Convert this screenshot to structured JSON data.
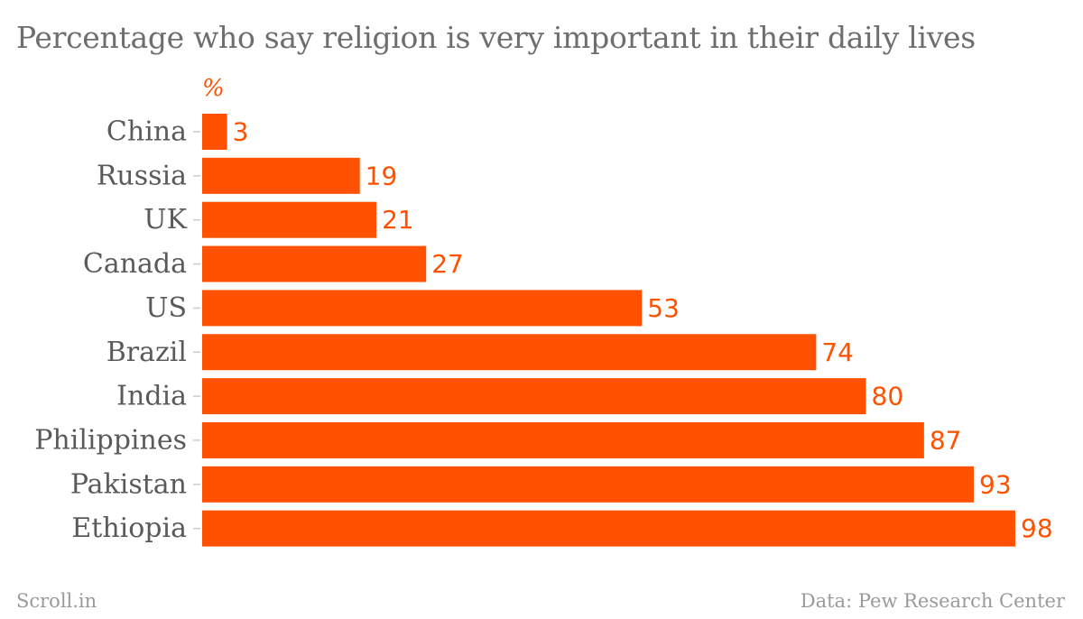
{
  "title": "Percentage who say religion is very important in their daily lives",
  "footer": {
    "brand": "Scroll.in",
    "source": "Data: Pew Research Center"
  },
  "colors": {
    "bar": "#ff5100",
    "label": "#5a5a5a",
    "tick": "#cccccc"
  },
  "chart_data": {
    "type": "bar",
    "orientation": "horizontal",
    "unit_label": "%",
    "categories": [
      "China",
      "Russia",
      "UK",
      "Canada",
      "US",
      "Brazil",
      "India",
      "Philippines",
      "Pakistan",
      "Ethiopia"
    ],
    "values": [
      3,
      19,
      21,
      27,
      53,
      74,
      80,
      87,
      93,
      98
    ],
    "xlim": [
      0,
      98
    ],
    "grid": false,
    "legend": "none"
  }
}
